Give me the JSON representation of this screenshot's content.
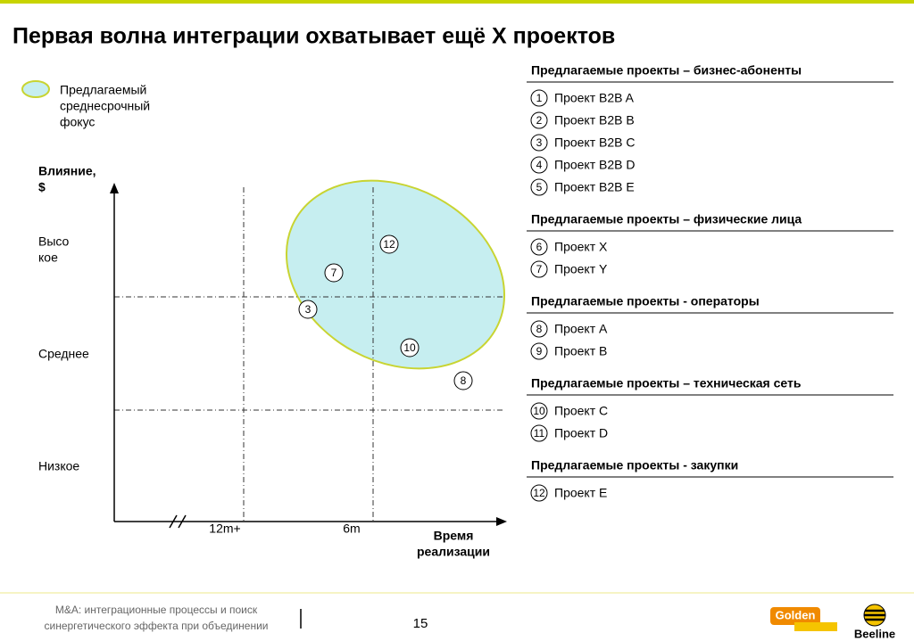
{
  "header": {
    "title": "Первая волна интеграции охватывает ещё X проектов"
  },
  "legend": {
    "label_lines": [
      "Предлагаемый",
      "среднесрочный",
      "фокус"
    ]
  },
  "matrix": {
    "y_axis_label_lines": [
      "Влияние,",
      "$"
    ],
    "y_levels": [
      [
        "Высо",
        "кое"
      ],
      [
        "Среднее"
      ],
      [
        "Низкое"
      ]
    ],
    "x_levels": [
      "12m+",
      "6m"
    ],
    "x_axis_label_lines": [
      "Время",
      "реализации"
    ],
    "points": [
      "12",
      "7",
      "3",
      "10",
      "8"
    ]
  },
  "sections": [
    {
      "heading": "Предлагаемые проекты – бизнес-абоненты",
      "items": [
        {
          "num": "1",
          "label": "Проект B2B A"
        },
        {
          "num": "2",
          "label": "Проект B2B B"
        },
        {
          "num": "3",
          "label": "Проект B2B C"
        },
        {
          "num": "4",
          "label": "Проект B2B D"
        },
        {
          "num": "5",
          "label": "Проект B2B E"
        }
      ]
    },
    {
      "heading": "Предлагаемые проекты – физические лица",
      "items": [
        {
          "num": "6",
          "label": "Проект X"
        },
        {
          "num": "7",
          "label": "Проект Y"
        }
      ]
    },
    {
      "heading": "Предлагаемые проекты - операторы",
      "items": [
        {
          "num": "8",
          "label": "Проект A"
        },
        {
          "num": "9",
          "label": "Проект B"
        }
      ]
    },
    {
      "heading": "Предлагаемые проекты – техническая сеть",
      "items": [
        {
          "num": "10",
          "label": "Проект C"
        },
        {
          "num": "11",
          "label": "Проект D"
        }
      ]
    },
    {
      "heading": "Предлагаемые проекты - закупки",
      "items": [
        {
          "num": "12",
          "label": "Проект E"
        }
      ]
    }
  ],
  "footer": {
    "note_lines": [
      "M&A: интеграционные процессы и поиск",
      "синергетического эффекта при объединении"
    ],
    "page": "15",
    "logo_left": "Golden",
    "logo_right": "Beeline"
  }
}
